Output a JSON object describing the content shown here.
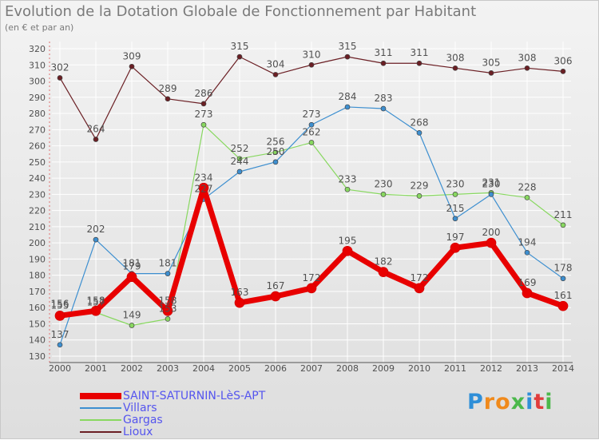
{
  "title": "Evolution de la Dotation Globale de Fonctionnement par Habitant",
  "subtitle": "(en € et par an)",
  "logo": {
    "letters": [
      "P",
      "r",
      "o",
      "x",
      "i",
      "t",
      "i"
    ],
    "colors": [
      "#2f8fd8",
      "#f08a1c",
      "#f08a1c",
      "#4bb84b",
      "#2f8fd8",
      "#e03c3c",
      "#4bb84b"
    ]
  },
  "chart_data": {
    "type": "line",
    "x": [
      2000,
      2001,
      2002,
      2003,
      2004,
      2005,
      2006,
      2007,
      2008,
      2009,
      2010,
      2011,
      2012,
      2013,
      2014
    ],
    "ylim": [
      130,
      320
    ],
    "yticks": [
      130,
      140,
      150,
      160,
      170,
      180,
      190,
      200,
      210,
      220,
      230,
      240,
      250,
      260,
      270,
      280,
      290,
      300,
      310,
      320
    ],
    "grid": true,
    "legend_position": "bottom-left",
    "series": [
      {
        "name": "Lioux",
        "color": "#6b1f24",
        "width": 1.2,
        "values": [
          302,
          264,
          309,
          289,
          286,
          315,
          304,
          310,
          315,
          311,
          311,
          308,
          305,
          308,
          306
        ]
      },
      {
        "name": "Gargas",
        "color": "#88d860",
        "width": 1.2,
        "values": [
          156,
          157,
          149,
          153,
          273,
          252,
          256,
          262,
          233,
          230,
          229,
          230,
          231,
          228,
          211
        ]
      },
      {
        "name": "Villars",
        "color": "#3d8fd0",
        "width": 1.2,
        "values": [
          137,
          202,
          181,
          181,
          227,
          244,
          250,
          273,
          284,
          283,
          268,
          215,
          230,
          194,
          178
        ]
      },
      {
        "name": "SAINT-SATURNIN-LèS-APT",
        "color": "#e80000",
        "width": 7,
        "values": [
          155,
          158,
          179,
          158,
          234,
          163,
          167,
          172,
          195,
          182,
          172,
          197,
          200,
          169,
          161
        ]
      }
    ]
  }
}
